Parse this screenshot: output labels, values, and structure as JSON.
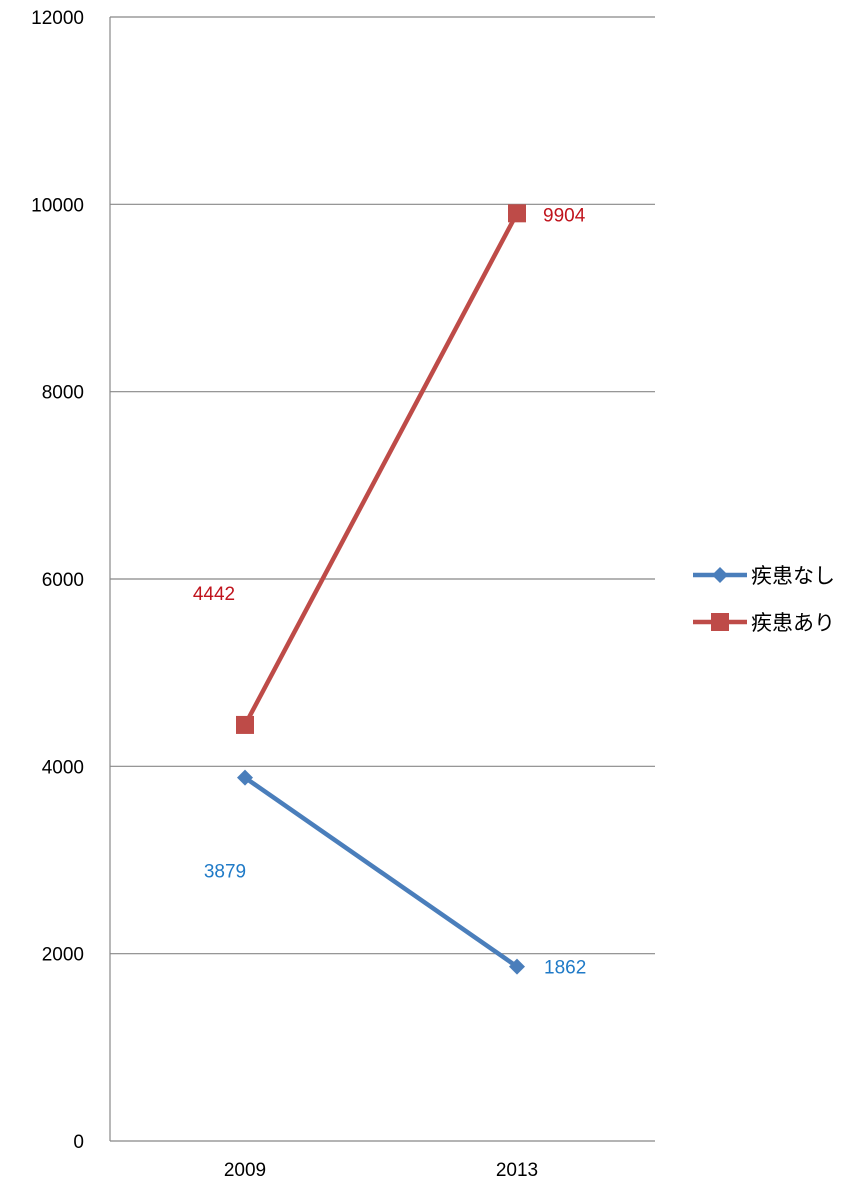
{
  "chart_data": {
    "type": "line",
    "categories": [
      "2009",
      "2013"
    ],
    "ylim": [
      0,
      12000
    ],
    "yticks": [
      "0",
      "2000",
      "4000",
      "6000",
      "8000",
      "10000",
      "12000"
    ],
    "grid": true,
    "legend_position": "right",
    "series": [
      {
        "name": "疾患なし",
        "values": [
          3879,
          1862
        ],
        "labels": [
          "3879",
          "1862"
        ],
        "color": "#4a7ebb",
        "label_color": "#1f7ac7",
        "marker": "diamond"
      },
      {
        "name": "疾患あり",
        "values": [
          4442,
          9904
        ],
        "labels": [
          "4442",
          "9904"
        ],
        "color": "#be4b48",
        "label_color": "#c0141d",
        "marker": "square"
      }
    ]
  }
}
